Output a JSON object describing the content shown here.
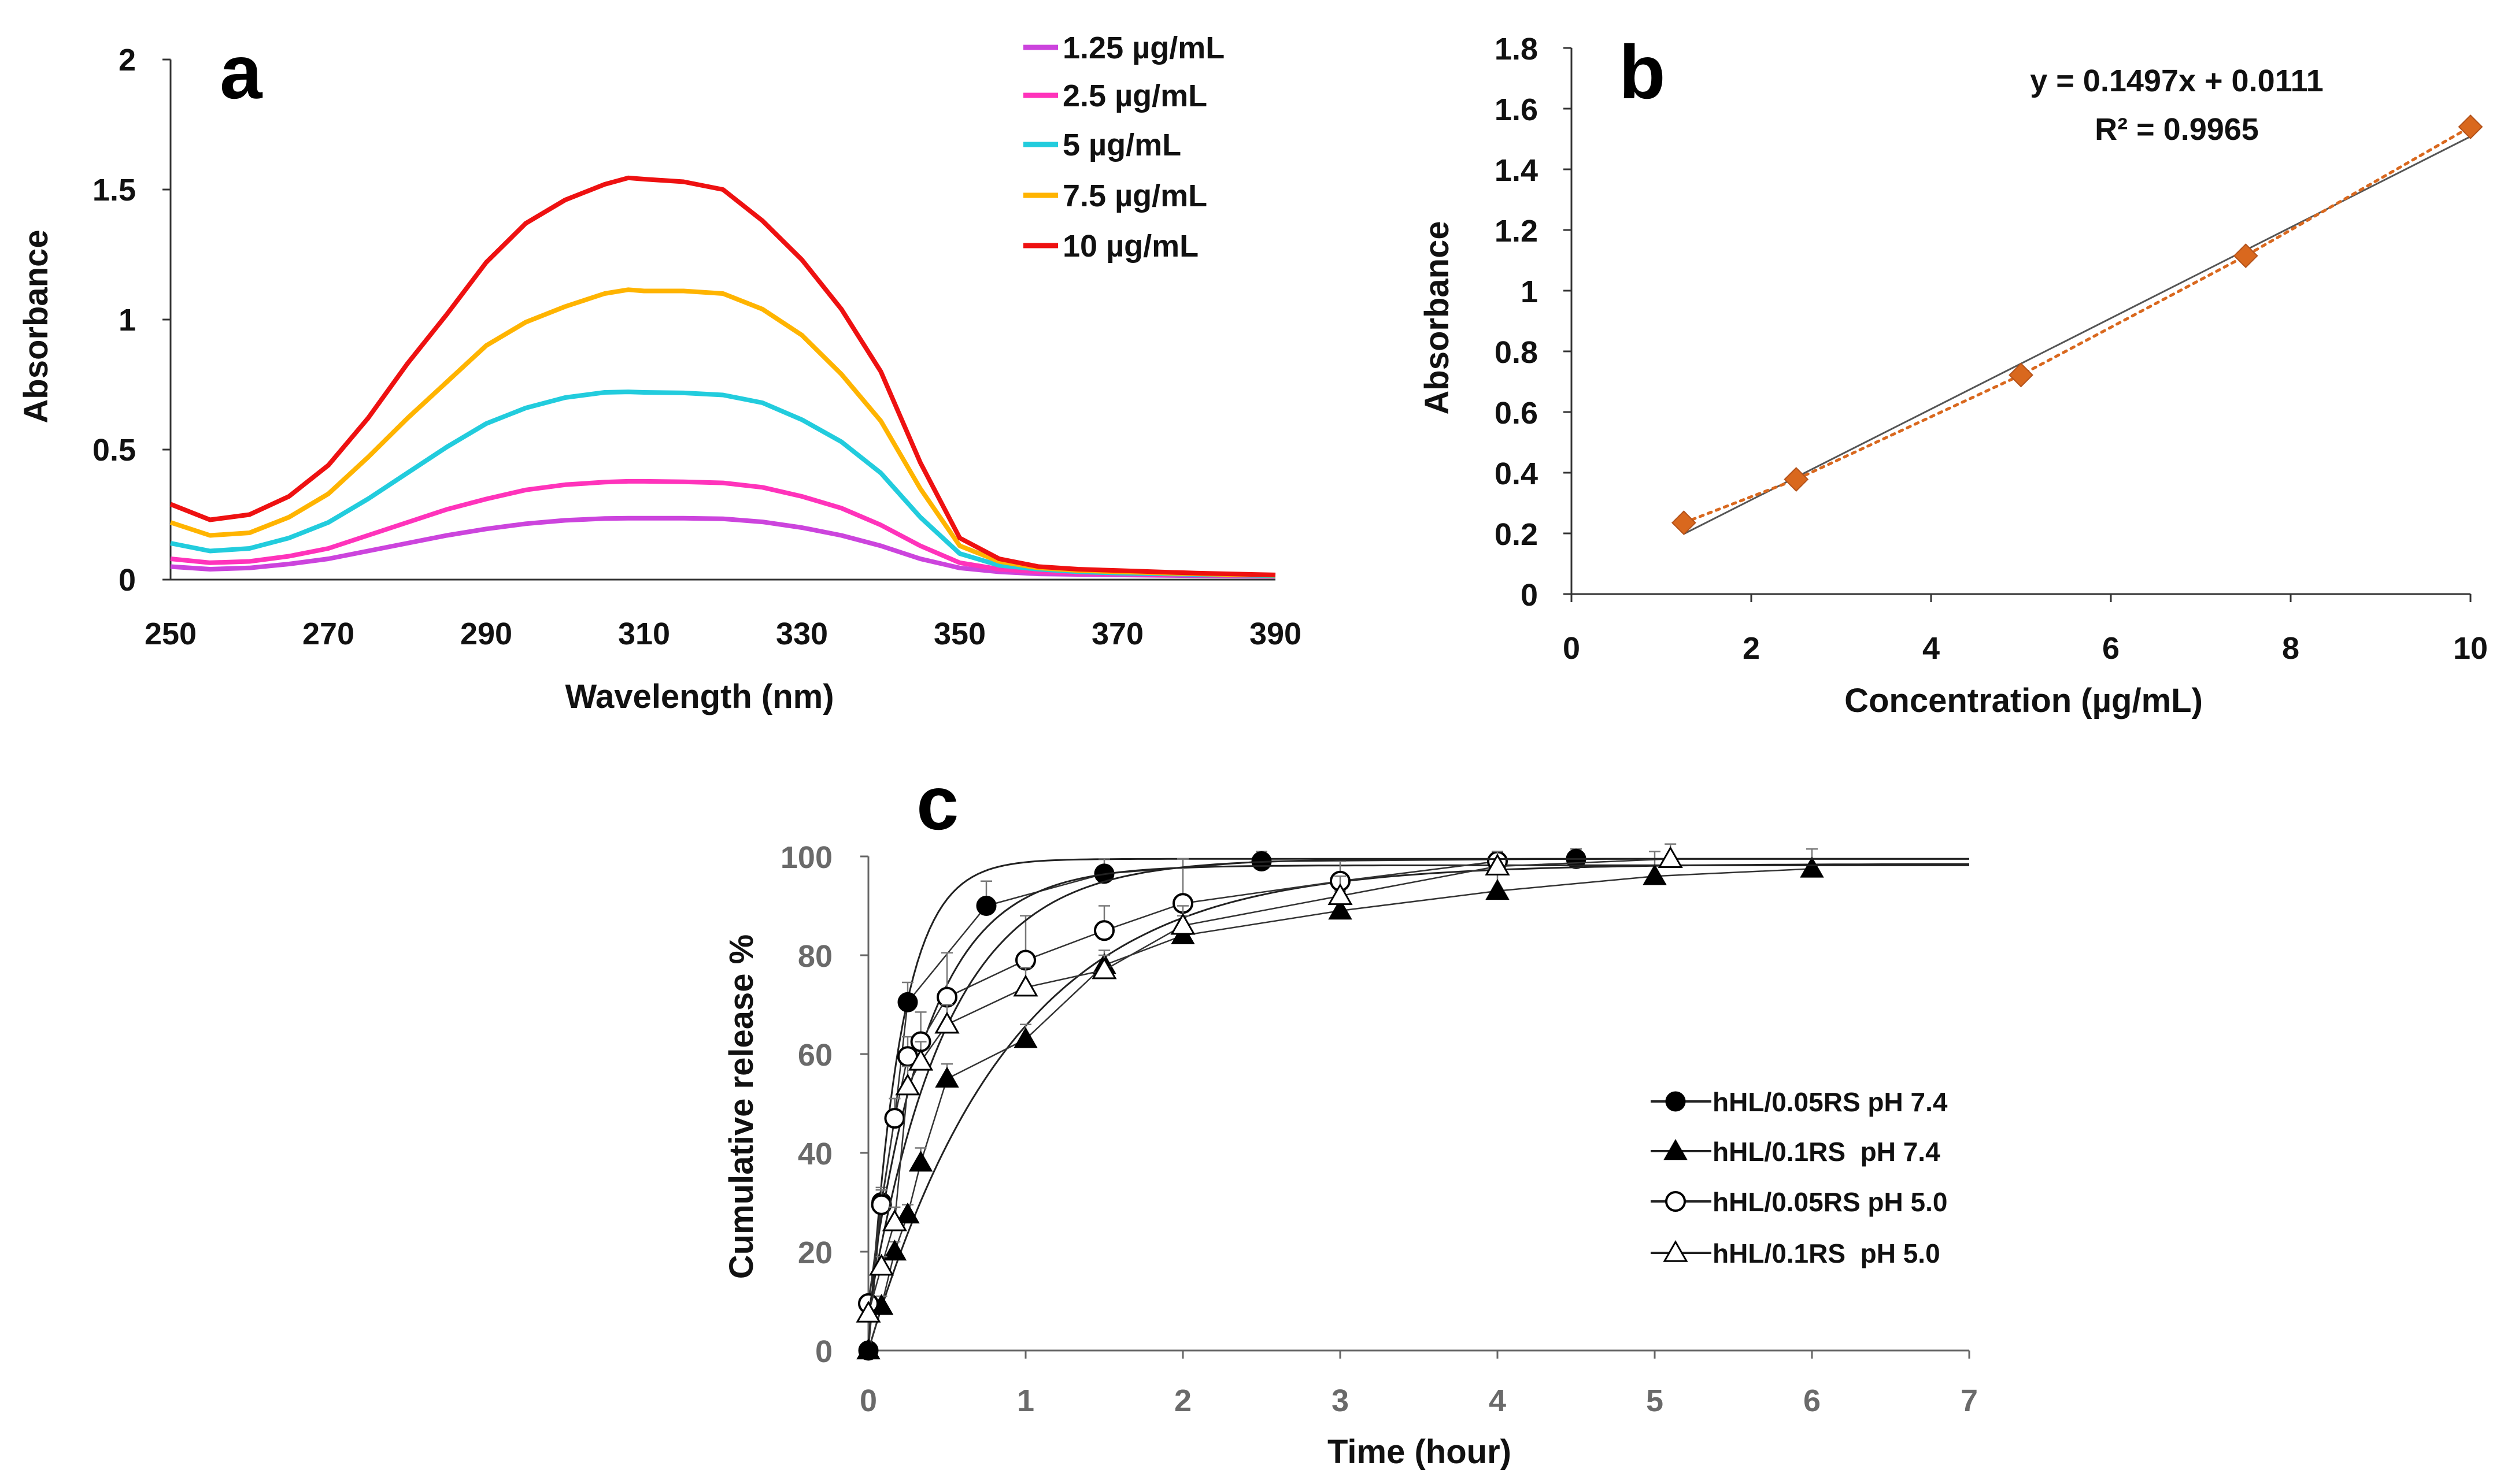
{
  "chart_data": [
    {
      "id": "a",
      "panel_label": "a",
      "type": "line",
      "title": "",
      "xlabel": "Wavelength (nm)",
      "ylabel": "Absorbance",
      "xlim": [
        250,
        390
      ],
      "ylim": [
        0,
        2
      ],
      "xticks": [
        "250",
        "270",
        "290",
        "310",
        "330",
        "350",
        "370",
        "390"
      ],
      "yticks": [
        "0",
        "0.5",
        "1",
        "1.5",
        "2"
      ],
      "grid": false,
      "legend_position": "top-right",
      "x": [
        250,
        255,
        260,
        265,
        270,
        275,
        280,
        285,
        290,
        295,
        300,
        305,
        308,
        310,
        315,
        320,
        325,
        330,
        335,
        340,
        345,
        350,
        355,
        360,
        365,
        370,
        380,
        390
      ],
      "series": [
        {
          "name": "1.25 µg/mL",
          "color": "#cc44dd",
          "values": [
            0.05,
            0.04,
            0.045,
            0.06,
            0.08,
            0.11,
            0.14,
            0.17,
            0.195,
            0.215,
            0.228,
            0.235,
            0.236,
            0.236,
            0.236,
            0.234,
            0.222,
            0.2,
            0.17,
            0.13,
            0.08,
            0.045,
            0.03,
            0.022,
            0.02,
            0.018,
            0.015,
            0.013
          ]
        },
        {
          "name": "2.5 µg/mL",
          "color": "#ff33bb",
          "values": [
            0.08,
            0.065,
            0.07,
            0.09,
            0.12,
            0.17,
            0.22,
            0.27,
            0.31,
            0.345,
            0.365,
            0.375,
            0.378,
            0.378,
            0.376,
            0.372,
            0.355,
            0.32,
            0.275,
            0.21,
            0.13,
            0.065,
            0.04,
            0.03,
            0.025,
            0.022,
            0.018,
            0.014
          ]
        },
        {
          "name": "5 µg/mL",
          "color": "#22ccdd",
          "values": [
            0.14,
            0.11,
            0.12,
            0.16,
            0.22,
            0.31,
            0.41,
            0.51,
            0.6,
            0.66,
            0.7,
            0.72,
            0.722,
            0.72,
            0.718,
            0.71,
            0.68,
            0.615,
            0.53,
            0.41,
            0.24,
            0.1,
            0.055,
            0.04,
            0.03,
            0.025,
            0.02,
            0.015
          ]
        },
        {
          "name": "7.5 µg/mL",
          "color": "#ffb400",
          "values": [
            0.22,
            0.17,
            0.18,
            0.24,
            0.33,
            0.47,
            0.62,
            0.76,
            0.9,
            0.99,
            1.05,
            1.1,
            1.115,
            1.11,
            1.11,
            1.1,
            1.04,
            0.94,
            0.79,
            0.61,
            0.35,
            0.13,
            0.07,
            0.045,
            0.035,
            0.03,
            0.022,
            0.017
          ]
        },
        {
          "name": "10 µg/mL",
          "color": "#ee1111",
          "values": [
            0.29,
            0.23,
            0.25,
            0.32,
            0.44,
            0.62,
            0.83,
            1.02,
            1.22,
            1.37,
            1.46,
            1.52,
            1.545,
            1.54,
            1.53,
            1.5,
            1.38,
            1.23,
            1.04,
            0.8,
            0.45,
            0.16,
            0.08,
            0.05,
            0.04,
            0.035,
            0.025,
            0.018
          ]
        }
      ]
    },
    {
      "id": "b",
      "panel_label": "b",
      "type": "scatter",
      "title": "",
      "xlabel": "Concentration (µg/mL)",
      "ylabel": "Absorbance",
      "xlim": [
        0,
        10
      ],
      "ylim": [
        0,
        1.8
      ],
      "xticks": [
        "0",
        "2",
        "4",
        "6",
        "8",
        "10"
      ],
      "yticks": [
        "0",
        "0.2",
        "0.4",
        "0.6",
        "0.8",
        "1",
        "1.2",
        "1.4",
        "1.6",
        "1.8"
      ],
      "grid": false,
      "equation": "y = 0.1497x + 0.0111",
      "r_squared": "R² = 0.9965",
      "marker_color": "#d9681e",
      "points": [
        {
          "x": 1.25,
          "y": 0.235
        },
        {
          "x": 2.5,
          "y": 0.378
        },
        {
          "x": 5,
          "y": 0.722
        },
        {
          "x": 7.5,
          "y": 1.115
        },
        {
          "x": 10,
          "y": 1.54
        }
      ],
      "fit_line": {
        "slope": 0.1497,
        "intercept": 0.0111,
        "x_range": [
          1.25,
          10
        ],
        "color": "#555555"
      },
      "trend_line": {
        "color": "#d9681e",
        "style": "dotted"
      }
    },
    {
      "id": "c",
      "panel_label": "c",
      "type": "line",
      "title": "",
      "xlabel": "Time (hour)",
      "ylabel": "Cumulative release %",
      "xlim": [
        0,
        7
      ],
      "ylim": [
        0,
        100
      ],
      "xticks": [
        "0",
        "1",
        "2",
        "3",
        "4",
        "5",
        "6",
        "7"
      ],
      "yticks": [
        "0",
        "20",
        "40",
        "60",
        "80",
        "100"
      ],
      "grid": false,
      "legend_position": "right",
      "series": [
        {
          "name": "hHL/0.05RS pH 7.4",
          "marker": "filled-circle",
          "points": [
            {
              "x": 0,
              "y": 0
            },
            {
              "x": 0.083,
              "y": 30
            },
            {
              "x": 0.167,
              "y": 47
            },
            {
              "x": 0.25,
              "y": 70.5
            },
            {
              "x": 0.75,
              "y": 90
            },
            {
              "x": 1.5,
              "y": 96.5
            },
            {
              "x": 2.5,
              "y": 99
            },
            {
              "x": 4.5,
              "y": 99.5
            }
          ],
          "errors": [
            0,
            3,
            4,
            4,
            5,
            3,
            2,
            2
          ],
          "fit": {
            "plateau": 99.5,
            "k": 5.0
          }
        },
        {
          "name": "hHL/0.1RS  pH 7.4",
          "marker": "filled-triangle",
          "points": [
            {
              "x": 0,
              "y": 0
            },
            {
              "x": 0.083,
              "y": 9
            },
            {
              "x": 0.167,
              "y": 20
            },
            {
              "x": 0.25,
              "y": 27.5
            },
            {
              "x": 0.333,
              "y": 38
            },
            {
              "x": 0.5,
              "y": 55
            },
            {
              "x": 1,
              "y": 63
            },
            {
              "x": 1.5,
              "y": 78
            },
            {
              "x": 2,
              "y": 84
            },
            {
              "x": 3,
              "y": 89
            },
            {
              "x": 4,
              "y": 93
            },
            {
              "x": 5,
              "y": 96
            },
            {
              "x": 6,
              "y": 97.5
            }
          ],
          "errors": [
            0,
            2,
            2,
            2,
            3,
            3,
            3,
            3,
            4,
            4,
            4,
            5,
            4
          ],
          "fit": {
            "plateau": 98.5,
            "k": 1.1
          }
        },
        {
          "name": "hHL/0.05RS pH 5.0",
          "marker": "open-circle",
          "points": [
            {
              "x": 0,
              "y": 9.5
            },
            {
              "x": 0.083,
              "y": 29.5
            },
            {
              "x": 0.167,
              "y": 47
            },
            {
              "x": 0.25,
              "y": 59.5
            },
            {
              "x": 0.333,
              "y": 62.5
            },
            {
              "x": 0.5,
              "y": 71.5
            },
            {
              "x": 1,
              "y": 79
            },
            {
              "x": 1.5,
              "y": 85
            },
            {
              "x": 2,
              "y": 90.5
            },
            {
              "x": 3,
              "y": 95
            },
            {
              "x": 4,
              "y": 99
            }
          ],
          "errors": [
            0,
            3,
            4,
            4,
            6,
            9,
            9,
            5,
            9,
            4,
            2
          ],
          "fit": {
            "plateau": 98.2,
            "k": 2.6
          }
        },
        {
          "name": "hHL/0.1RS  pH 5.0",
          "marker": "open-triangle",
          "points": [
            {
              "x": 0,
              "y": 7.5
            },
            {
              "x": 0.083,
              "y": 17
            },
            {
              "x": 0.167,
              "y": 26
            },
            {
              "x": 0.25,
              "y": 53.5
            },
            {
              "x": 0.333,
              "y": 58.5
            },
            {
              "x": 0.5,
              "y": 66
            },
            {
              "x": 1,
              "y": 73.5
            },
            {
              "x": 1.5,
              "y": 77
            },
            {
              "x": 2,
              "y": 86
            },
            {
              "x": 3,
              "y": 92
            },
            {
              "x": 4,
              "y": 98
            },
            {
              "x": 5.1,
              "y": 99.5
            }
          ],
          "errors": [
            0,
            2,
            3,
            4,
            4,
            4,
            4,
            3,
            4,
            4,
            3,
            3
          ],
          "fit": {
            "plateau": 99.5,
            "k": 2.0
          }
        }
      ]
    }
  ]
}
